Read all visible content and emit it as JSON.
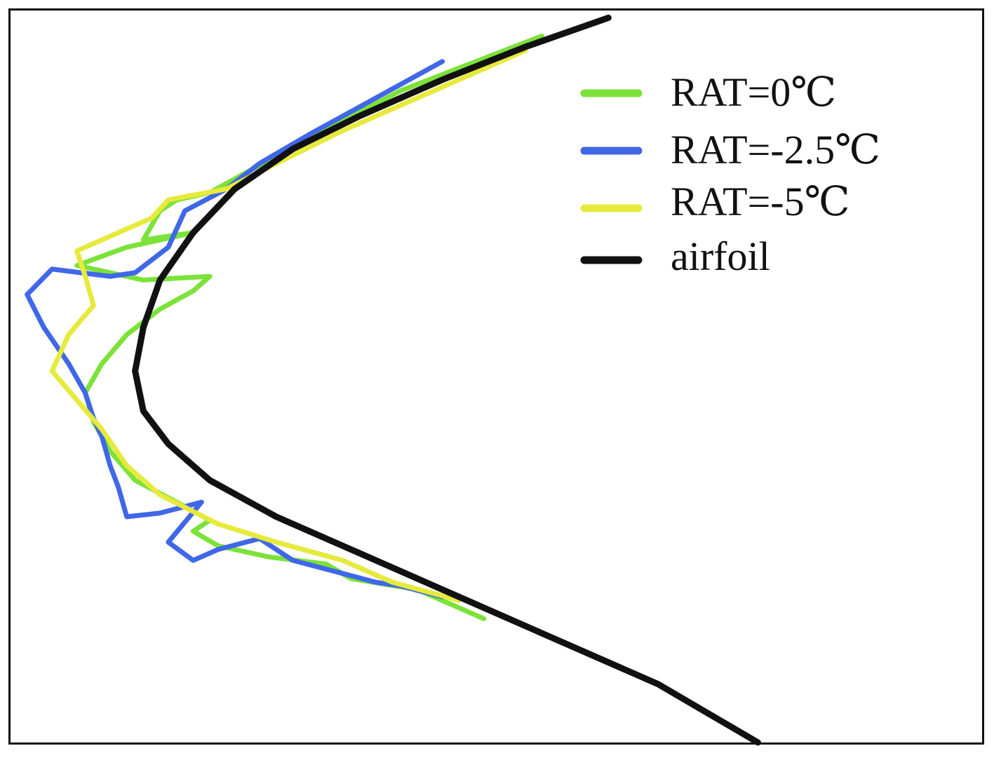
{
  "chart_data": {
    "type": "line",
    "title": "",
    "xlabel": "",
    "ylabel": "",
    "grid": false,
    "legend_position": "top-right",
    "series": [
      {
        "name": "RAT=0℃",
        "color": "#7CE23A",
        "x": [
          0.62,
          0.45,
          0.34,
          0.26,
          0.22,
          0.18,
          0.16,
          0.15,
          0.14,
          0.2,
          0.12,
          0.06,
          0.14,
          0.22,
          0.2,
          0.16,
          0.12,
          0.09,
          0.07,
          0.08,
          0.1,
          0.13,
          0.18,
          0.22,
          0.2,
          0.23,
          0.29,
          0.36,
          0.39,
          0.47,
          0.55
        ],
        "y": [
          1.0,
          0.85,
          0.72,
          0.62,
          0.57,
          0.55,
          0.52,
          0.48,
          0.44,
          0.46,
          0.42,
          0.37,
          0.33,
          0.34,
          0.3,
          0.25,
          0.18,
          0.1,
          0.02,
          -0.06,
          -0.14,
          -0.22,
          -0.28,
          -0.33,
          -0.36,
          -0.4,
          -0.43,
          -0.45,
          -0.49,
          -0.52,
          -0.6
        ]
      },
      {
        "name": "RAT=-2.5℃",
        "color": "#3F67E8",
        "x": [
          0.5,
          0.42,
          0.34,
          0.28,
          0.24,
          0.19,
          0.17,
          0.13,
          0.1,
          0.03,
          0.0,
          0.02,
          0.05,
          0.07,
          0.08,
          0.09,
          0.1,
          0.11,
          0.12,
          0.16,
          0.21,
          0.17,
          0.2,
          0.23,
          0.28,
          0.32,
          0.37,
          0.42,
          0.45,
          0.5
        ],
        "y": [
          0.93,
          0.83,
          0.73,
          0.65,
          0.58,
          0.52,
          0.42,
          0.35,
          0.34,
          0.36,
          0.29,
          0.2,
          0.1,
          0.02,
          -0.05,
          -0.1,
          -0.18,
          -0.24,
          -0.32,
          -0.31,
          -0.28,
          -0.39,
          -0.44,
          -0.41,
          -0.38,
          -0.44,
          -0.47,
          -0.5,
          -0.51,
          -0.54
        ]
      },
      {
        "name": "RAT=-5℃",
        "color": "#E6EA3C",
        "x": [
          0.6,
          0.48,
          0.38,
          0.3,
          0.24,
          0.17,
          0.15,
          0.12,
          0.09,
          0.06,
          0.07,
          0.08,
          0.05,
          0.03,
          0.06,
          0.09,
          0.12,
          0.16,
          0.23,
          0.3,
          0.38,
          0.44,
          0.52
        ],
        "y": [
          0.96,
          0.84,
          0.74,
          0.65,
          0.58,
          0.55,
          0.5,
          0.47,
          0.44,
          0.41,
          0.34,
          0.26,
          0.18,
          0.08,
          0.0,
          -0.08,
          -0.18,
          -0.26,
          -0.34,
          -0.39,
          -0.44,
          -0.5,
          -0.55
        ]
      },
      {
        "name": "airfoil",
        "color": "#111111",
        "x": [
          0.7,
          0.6,
          0.5,
          0.4,
          0.32,
          0.25,
          0.2,
          0.16,
          0.14,
          0.13,
          0.14,
          0.17,
          0.22,
          0.3,
          0.4,
          0.5,
          0.62,
          0.76,
          0.88
        ],
        "y": [
          1.05,
          0.97,
          0.88,
          0.78,
          0.69,
          0.58,
          0.46,
          0.33,
          0.2,
          0.08,
          -0.03,
          -0.12,
          -0.22,
          -0.32,
          -0.42,
          -0.52,
          -0.64,
          -0.78,
          -0.94
        ]
      }
    ],
    "xlim": [
      -0.02,
      1.15
    ],
    "ylim": [
      -0.94,
      1.07
    ]
  }
}
